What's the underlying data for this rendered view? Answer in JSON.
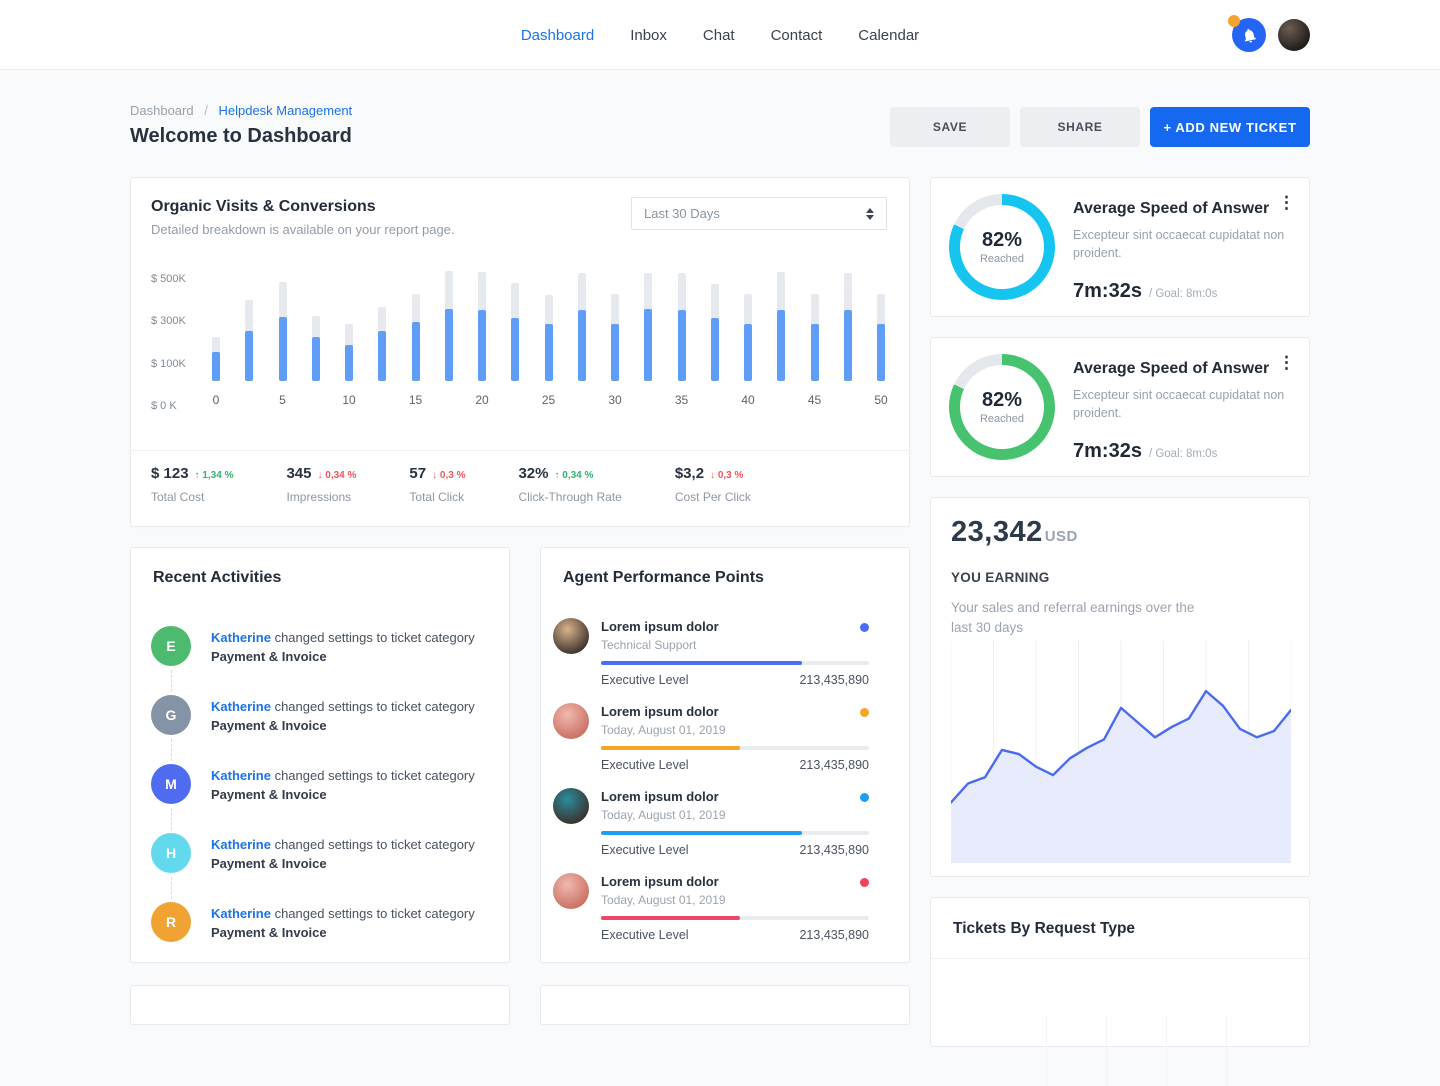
{
  "theme": {
    "primary_blue": "#1a73e8",
    "button_blue": "#1569f0",
    "bar_blue": "#5f9df6",
    "bar_track": "#e6e9ee",
    "donut_track": "#e4e7eb",
    "up_green": "#2fb56b",
    "down_red": "#f2545b"
  },
  "nav": {
    "items": [
      {
        "label": "Dashboard",
        "active": true
      },
      {
        "label": "Inbox",
        "active": false
      },
      {
        "label": "Chat",
        "active": false
      },
      {
        "label": "Contact",
        "active": false
      },
      {
        "label": "Calendar",
        "active": false
      }
    ]
  },
  "header": {
    "breadcrumb": {
      "parent": "Dashboard",
      "separator": "/",
      "current": "Helpdesk Management"
    },
    "title": "Welcome to Dashboard",
    "save_label": "SAVE",
    "share_label": "SHARE",
    "add_ticket_label": "+ ADD NEW TICKET"
  },
  "organic": {
    "title": "Organic Visits & Conversions",
    "subtitle": "Detailed breakdown is available on your report page.",
    "range_selected": "Last 30 Days",
    "chart": {
      "type": "bar",
      "ymax_k": 550,
      "ylabels": [
        "$ 500K",
        "$ 300K",
        "$ 100K",
        "$ 0 K"
      ],
      "xlabels": [
        "0",
        "5",
        "10",
        "15",
        "20",
        "25",
        "30",
        "35",
        "40",
        "45",
        "50"
      ],
      "bars_total_vs_value_k": [
        [
          200,
          135
        ],
        [
          370,
          230
        ],
        [
          455,
          295
        ],
        [
          300,
          200
        ],
        [
          260,
          165
        ],
        [
          340,
          230
        ],
        [
          400,
          270
        ],
        [
          505,
          330
        ],
        [
          500,
          325
        ],
        [
          450,
          290
        ],
        [
          395,
          260
        ],
        [
          495,
          325
        ],
        [
          400,
          260
        ],
        [
          495,
          330
        ],
        [
          495,
          325
        ],
        [
          445,
          290
        ],
        [
          400,
          260
        ],
        [
          500,
          325
        ],
        [
          400,
          260
        ],
        [
          495,
          325
        ],
        [
          400,
          260
        ]
      ]
    },
    "stats": [
      {
        "value": "$ 123",
        "direction": "up",
        "delta": "1,34 %",
        "label": "Total Cost"
      },
      {
        "value": "345",
        "direction": "down",
        "delta": "0,34 %",
        "label": "Impressions"
      },
      {
        "value": "57",
        "direction": "down",
        "delta": "0,3 %",
        "label": "Total Click"
      },
      {
        "value": "32%",
        "direction": "up",
        "delta": "0,34 %",
        "label": "Click-Through Rate"
      },
      {
        "value": "$3,2",
        "direction": "down",
        "delta": "0,3 %",
        "label": "Cost Per Click"
      }
    ]
  },
  "activities": {
    "title": "Recent Activities",
    "items": [
      {
        "initial": "E",
        "color": "#4dbb6f",
        "user": "Katherine",
        "action": "changed settings to ticket category",
        "category": "Payment & Invoice"
      },
      {
        "initial": "G",
        "color": "#8593a6",
        "user": "Katherine",
        "action": "changed settings to ticket category",
        "category": "Payment & Invoice"
      },
      {
        "initial": "M",
        "color": "#4f6bf0",
        "user": "Katherine",
        "action": "changed settings to ticket category",
        "category": "Payment & Invoice"
      },
      {
        "initial": "H",
        "color": "#62d9ec",
        "user": "Katherine",
        "action": "changed settings to ticket category",
        "category": "Payment & Invoice"
      },
      {
        "initial": "R",
        "color": "#f0a233",
        "user": "Katherine",
        "action": "changed settings to ticket category",
        "category": "Payment & Invoice"
      }
    ]
  },
  "agents": {
    "title": "Agent Performance Points",
    "items": [
      {
        "name": "Lorem ipsum dolor",
        "subtitle": "Technical Support",
        "dot_color": "#4a6cf7",
        "bar_color": "#4a6cf7",
        "progress": 75,
        "level_label": "Executive Level",
        "points": "213,435,890",
        "avatar_colors": [
          "#d8b48c",
          "#3a302a"
        ]
      },
      {
        "name": "Lorem ipsum dolor",
        "subtitle": "Today, August 01, 2019",
        "dot_color": "#f5a623",
        "bar_color": "#f5a623",
        "progress": 52,
        "level_label": "Executive Level",
        "points": "213,435,890",
        "avatar_colors": [
          "#f0b9ad",
          "#c96e62"
        ]
      },
      {
        "name": "Lorem ipsum dolor",
        "subtitle": "Today, August 01, 2019",
        "dot_color": "#1e9df2",
        "bar_color": "#1e9df2",
        "progress": 75,
        "level_label": "Executive Level",
        "points": "213,435,890",
        "avatar_colors": [
          "#2a8da0",
          "#3c2f28"
        ]
      },
      {
        "name": "Lorem ipsum dolor",
        "subtitle": "Today, August 01, 2019",
        "dot_color": "#f2415f",
        "bar_color": "#ea4868",
        "progress": 52,
        "level_label": "Executive Level",
        "points": "213,435,890",
        "avatar_colors": [
          "#f0b9ad",
          "#c96e62"
        ]
      }
    ]
  },
  "speed_cards": [
    {
      "title": "Average Speed of Answer",
      "description": "Excepteur sint occaecat cupidatat non proident.",
      "percent_value": 82,
      "percent": "82%",
      "reached_label": "Reached",
      "ring_color": "#15c5f0",
      "time": "7m:32s",
      "goal": "/ Goal: 8m:0s"
    },
    {
      "title": "Average Speed of Answer",
      "description": "Excepteur sint occaecat cupidatat non proident.",
      "percent_value": 82,
      "percent": "82%",
      "reached_label": "Reached",
      "ring_color": "#47c26e",
      "time": "7m:32s",
      "goal": "/ Goal: 8m:0s"
    }
  ],
  "earnings": {
    "amount": "23,342",
    "currency": "USD",
    "heading": "YOU EARNING",
    "description": "Your sales and referral earnings over the last 30 days",
    "chart": {
      "type": "area",
      "line_color": "#4b6aee",
      "fill_color": "#e8ebfb",
      "points_pct": [
        26,
        35,
        38,
        51,
        49,
        43,
        39,
        47,
        52,
        56,
        71,
        64,
        57,
        62,
        66,
        79,
        72,
        61,
        57,
        60,
        70
      ]
    }
  },
  "tickets": {
    "title": "Tickets By Request Type"
  }
}
